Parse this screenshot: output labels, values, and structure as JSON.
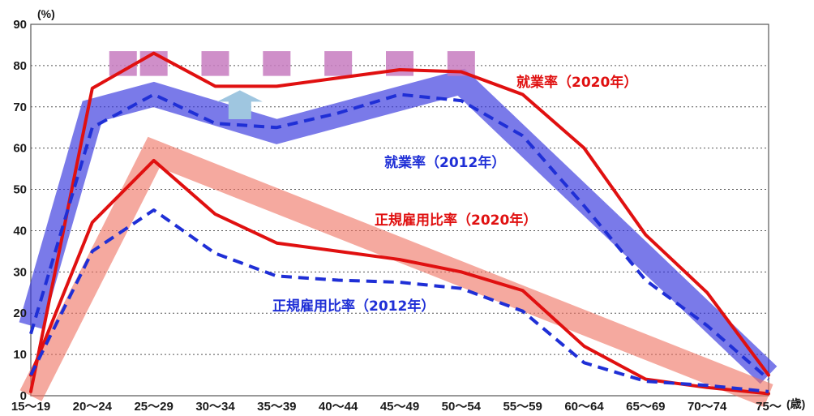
{
  "chart_data": {
    "type": "line",
    "y_unit": "(%)",
    "x_unit": "(歳)",
    "ylim": [
      0,
      90
    ],
    "yticks": [
      0,
      10,
      20,
      30,
      40,
      50,
      60,
      70,
      80,
      90
    ],
    "grid": true,
    "categories": [
      "15〜19",
      "20〜24",
      "25〜29",
      "30〜34",
      "35〜39",
      "40〜44",
      "45〜49",
      "50〜54",
      "55〜59",
      "60〜64",
      "65〜69",
      "70〜74",
      "75〜"
    ],
    "series": [
      {
        "name": "就業率（2020年）",
        "color": "#e01010",
        "style": "solid",
        "values": [
          1,
          74.5,
          83,
          75,
          75,
          77,
          79,
          78.5,
          73,
          60,
          39,
          25,
          5
        ]
      },
      {
        "name": "就業率（2012年）",
        "color": "#1f2fd6",
        "style": "dashed",
        "values": [
          15,
          65,
          73,
          66,
          65,
          68.5,
          73,
          71.5,
          63,
          46,
          28,
          17,
          4
        ]
      },
      {
        "name": "正規雇用比率（2020年）",
        "color": "#e01010",
        "style": "solid",
        "values": [
          5,
          42,
          57,
          44,
          37,
          35,
          33,
          30,
          25.5,
          12,
          4,
          2,
          0.5
        ]
      },
      {
        "name": "正規雇用比率（2012年）",
        "color": "#1f2fd6",
        "style": "dashed",
        "values": [
          5,
          35,
          45,
          34.5,
          29,
          28,
          27.5,
          26,
          20.5,
          8,
          3.5,
          2.5,
          1
        ]
      }
    ],
    "annotations": [
      {
        "text": "就業率（2020年）",
        "color": "#e01010"
      },
      {
        "text": "就業率（2012年）",
        "color": "#1f2fd6"
      },
      {
        "text": "正規雇用比率（2020年）",
        "color": "#e01010"
      },
      {
        "text": "正規雇用比率（2012年）",
        "color": "#1f2fd6"
      }
    ],
    "bands": [
      {
        "color": "#3333dd",
        "opacity": 0.65,
        "x": [
          0,
          1,
          2,
          4,
          7,
          12
        ],
        "y": [
          17,
          69,
          73,
          64,
          76,
          5
        ]
      },
      {
        "color": "#ef6f5f",
        "opacity": 0.6,
        "x": [
          0,
          2,
          12
        ],
        "y": [
          0,
          59,
          0
        ]
      }
    ],
    "highlight": {
      "color": "#c77bbf",
      "x": [
        1.5,
        2,
        3,
        4,
        5,
        6,
        7
      ],
      "y_range": [
        77.5,
        83.5
      ]
    },
    "arrow": {
      "color": "#9fc6e0",
      "x": 3.4,
      "y_range": [
        67,
        74
      ]
    }
  }
}
